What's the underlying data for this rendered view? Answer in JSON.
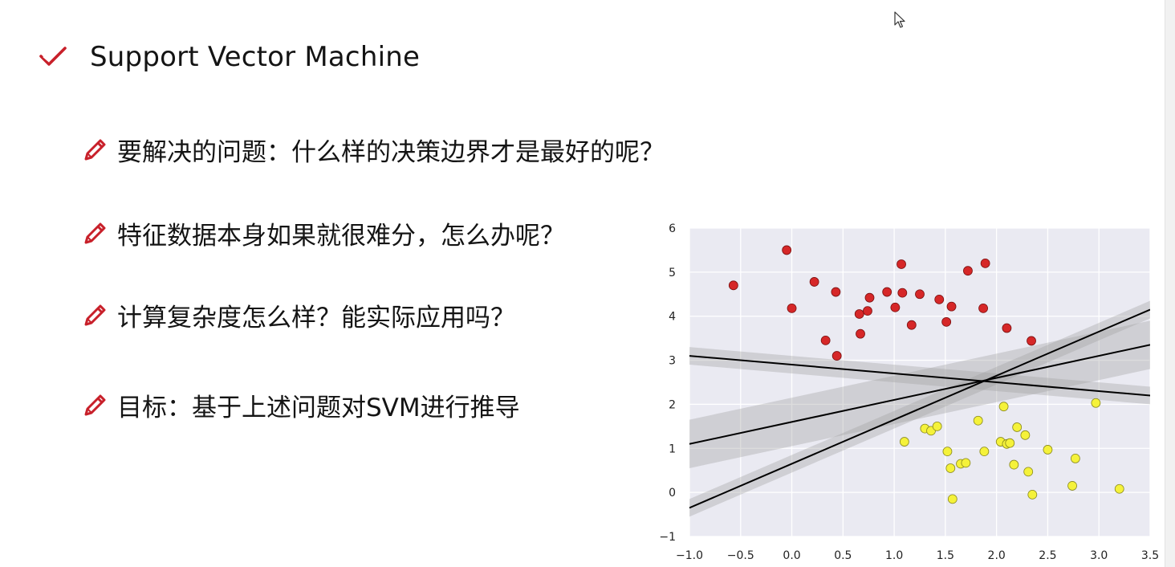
{
  "slide": {
    "title": "Support Vector Machine",
    "title_icon": "check-icon",
    "bullet_icon": "pencil-icon",
    "accent_color": "#c8202a",
    "bullets": [
      "要解决的问题：什么样的决策边界才是最好的呢？",
      "特征数据本身如果就很难分，怎么办呢？",
      "计算复杂度怎么样？能实际应用吗？",
      "目标：基于上述问题对SVM进行推导"
    ]
  },
  "chart_data": {
    "type": "scatter",
    "title": "",
    "xlabel": "",
    "ylabel": "",
    "xlim": [
      -1.0,
      3.5
    ],
    "ylim": [
      -1,
      6
    ],
    "xticks": [
      "−1.0",
      "−0.5",
      "0.0",
      "0.5",
      "1.0",
      "1.5",
      "2.0",
      "2.5",
      "3.0",
      "3.5"
    ],
    "yticks": [
      "−1",
      "0",
      "1",
      "2",
      "3",
      "4",
      "5",
      "6"
    ],
    "grid": true,
    "background": "#eaeaf2",
    "series": [
      {
        "color": "#d62728",
        "points": [
          [
            -0.57,
            4.7
          ],
          [
            -0.05,
            5.5
          ],
          [
            0.0,
            4.18
          ],
          [
            0.22,
            4.78
          ],
          [
            0.33,
            3.45
          ],
          [
            0.43,
            4.55
          ],
          [
            0.44,
            3.1
          ],
          [
            0.66,
            4.05
          ],
          [
            0.67,
            3.6
          ],
          [
            0.74,
            4.12
          ],
          [
            0.76,
            4.42
          ],
          [
            0.93,
            4.55
          ],
          [
            1.01,
            4.2
          ],
          [
            1.07,
            5.18
          ],
          [
            1.08,
            4.53
          ],
          [
            1.17,
            3.8
          ],
          [
            1.25,
            4.5
          ],
          [
            1.44,
            4.38
          ],
          [
            1.51,
            3.87
          ],
          [
            1.56,
            4.22
          ],
          [
            1.72,
            5.03
          ],
          [
            1.87,
            4.18
          ],
          [
            1.89,
            5.2
          ],
          [
            2.1,
            3.73
          ],
          [
            2.34,
            3.44
          ]
        ]
      },
      {
        "color": "#f5f23a",
        "points": [
          [
            1.1,
            1.15
          ],
          [
            1.3,
            1.45
          ],
          [
            1.36,
            1.4
          ],
          [
            1.42,
            1.5
          ],
          [
            1.52,
            0.93
          ],
          [
            1.55,
            0.55
          ],
          [
            1.57,
            -0.15
          ],
          [
            1.65,
            0.65
          ],
          [
            1.7,
            0.67
          ],
          [
            1.82,
            1.63
          ],
          [
            1.88,
            0.93
          ],
          [
            2.04,
            1.15
          ],
          [
            2.07,
            1.95
          ],
          [
            2.1,
            1.1
          ],
          [
            2.13,
            1.12
          ],
          [
            2.17,
            0.63
          ],
          [
            2.2,
            1.48
          ],
          [
            2.28,
            1.3
          ],
          [
            2.31,
            0.47
          ],
          [
            2.35,
            -0.05
          ],
          [
            2.5,
            0.97
          ],
          [
            2.74,
            0.15
          ],
          [
            2.77,
            0.77
          ],
          [
            2.97,
            2.03
          ],
          [
            3.2,
            0.08
          ]
        ]
      }
    ],
    "lines": [
      {
        "slope": 1.0,
        "intercept": 0.65,
        "band": 0.2
      },
      {
        "slope": 0.5,
        "intercept": 1.6,
        "band": 0.55
      },
      {
        "slope": -0.2,
        "intercept": 2.9,
        "band": 0.2
      }
    ],
    "line_color": "#000000",
    "band_color": "#9e9e9e"
  }
}
